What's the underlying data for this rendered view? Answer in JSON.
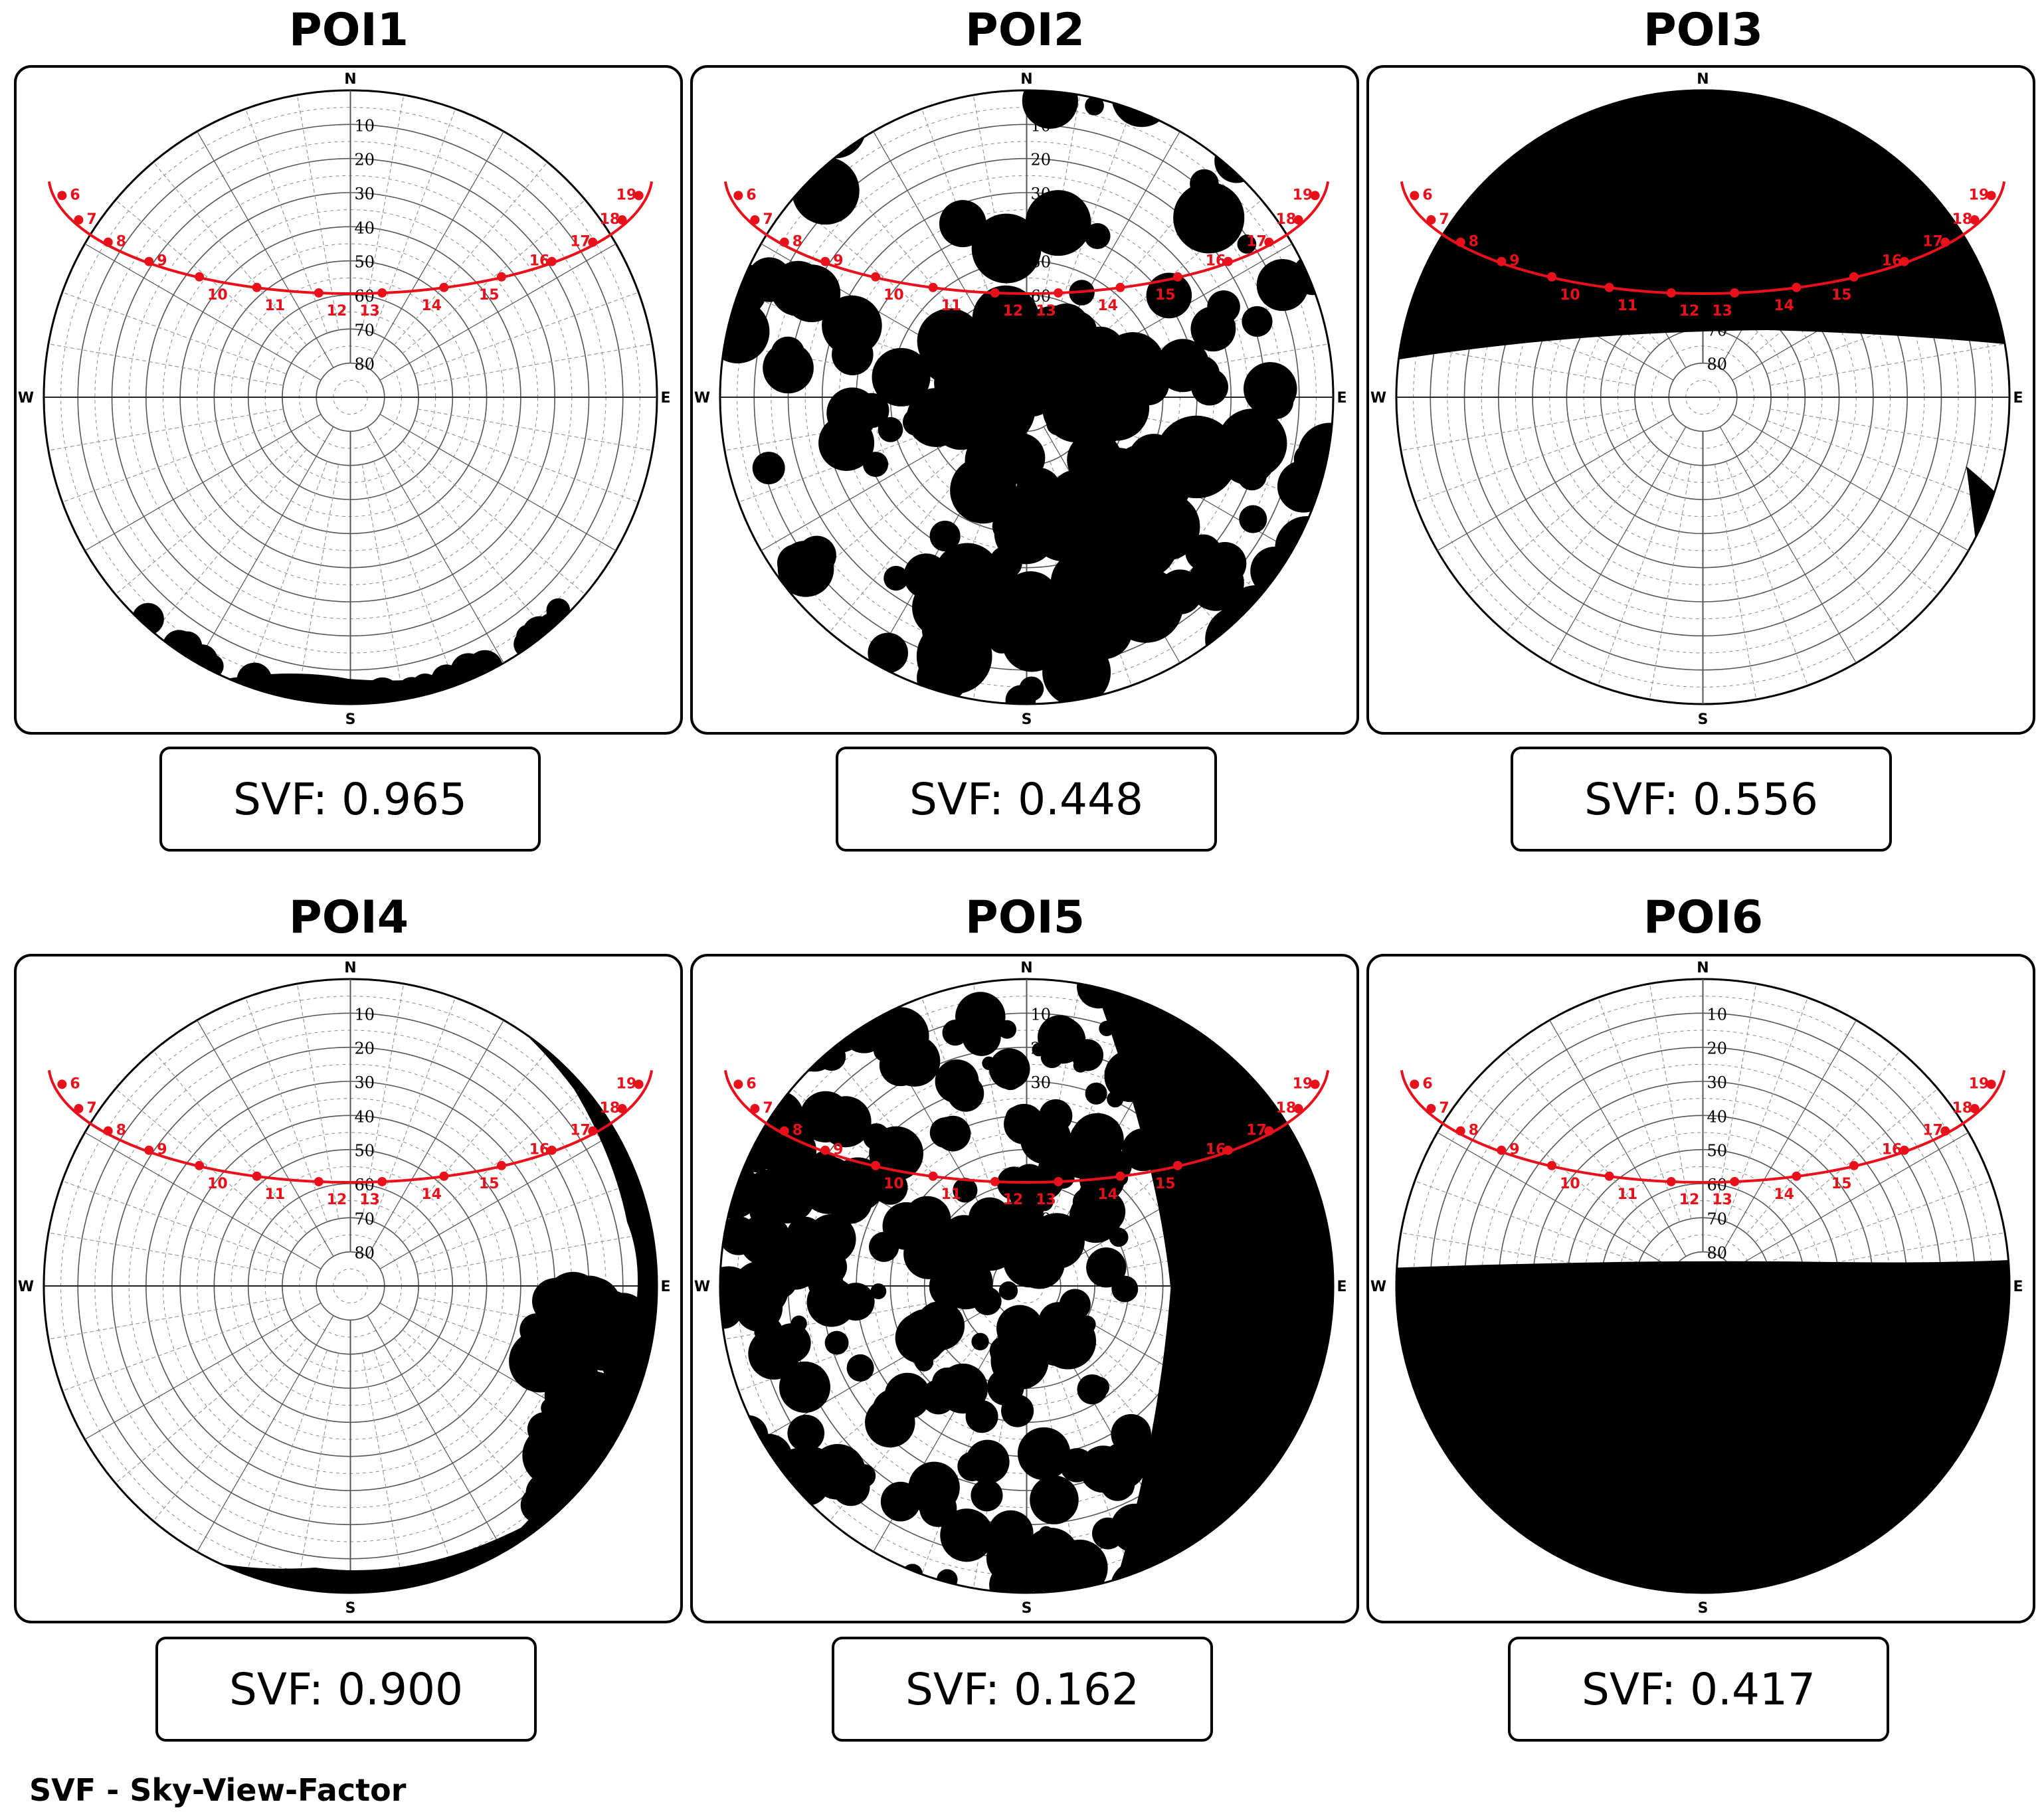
{
  "panels": [
    {
      "title": "POI1",
      "svf_text": "SVF: 0.965",
      "svf": 0.965,
      "obstruction": "edge-trees-south"
    },
    {
      "title": "POI2",
      "svf_text": "SVF: 0.448",
      "svf": 0.448,
      "obstruction": "dense-canopy"
    },
    {
      "title": "POI3",
      "svf_text": "SVF: 0.556",
      "svf": 0.556,
      "obstruction": "north-half-blocked"
    },
    {
      "title": "POI4",
      "svf_text": "SVF: 0.900",
      "svf": 0.9,
      "obstruction": "edge-trees-east-south"
    },
    {
      "title": "POI5",
      "svf_text": "SVF: 0.162",
      "svf": 0.162,
      "obstruction": "heavy-canopy-east-blocked"
    },
    {
      "title": "POI6",
      "svf_text": "SVF: 0.417",
      "svf": 0.417,
      "obstruction": "south-half-blocked"
    }
  ],
  "compass": {
    "north": "N",
    "south": "S",
    "east": "E",
    "west": "W"
  },
  "altitude_labels": [
    "10",
    "20",
    "30",
    "40",
    "50",
    "60",
    "70",
    "80"
  ],
  "sun_path_hours": [
    "6",
    "7",
    "8",
    "9",
    "10",
    "11",
    "12",
    "13",
    "14",
    "15",
    "16",
    "17",
    "18",
    "19"
  ],
  "colors": {
    "sun_path": "#e8101a",
    "obstruction": "#000000",
    "grid": "#555555",
    "background": "#ffffff"
  },
  "footnote": "SVF - Sky-View-Factor"
}
